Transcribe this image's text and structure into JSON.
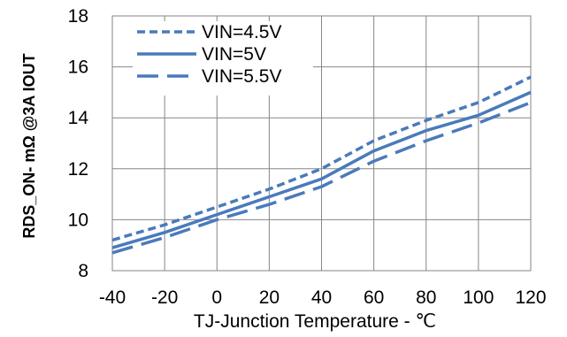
{
  "chart_data": {
    "type": "line",
    "xlabel": "TJ-Junction Temperature - ℃",
    "ylabel": "RDS_ON- mΩ @3A IOUT",
    "xlim": [
      -40,
      120
    ],
    "ylim": [
      8,
      18
    ],
    "x_ticks": [
      "-40",
      "-20",
      "0",
      "20",
      "40",
      "60",
      "80",
      "100",
      "120"
    ],
    "y_ticks": [
      "8",
      "10",
      "12",
      "14",
      "16",
      "18"
    ],
    "grid": true,
    "legend_position": "top-left",
    "x": [
      -40,
      -20,
      0,
      20,
      40,
      60,
      80,
      100,
      120
    ],
    "series": [
      {
        "name": "VIN=4.5V",
        "values": [
          9.2,
          9.8,
          10.5,
          11.2,
          12.0,
          13.1,
          13.9,
          14.6,
          15.6
        ],
        "color": "#4a7abb",
        "dash": "short"
      },
      {
        "name": "VIN=5V",
        "values": [
          8.9,
          9.5,
          10.2,
          10.9,
          11.6,
          12.7,
          13.5,
          14.1,
          15.0
        ],
        "color": "#4a7abb",
        "dash": "solid"
      },
      {
        "name": "VIN=5.5V",
        "values": [
          8.7,
          9.3,
          10.0,
          10.6,
          11.3,
          12.3,
          13.1,
          13.8,
          14.6
        ],
        "color": "#4a7abb",
        "dash": "long"
      }
    ]
  }
}
